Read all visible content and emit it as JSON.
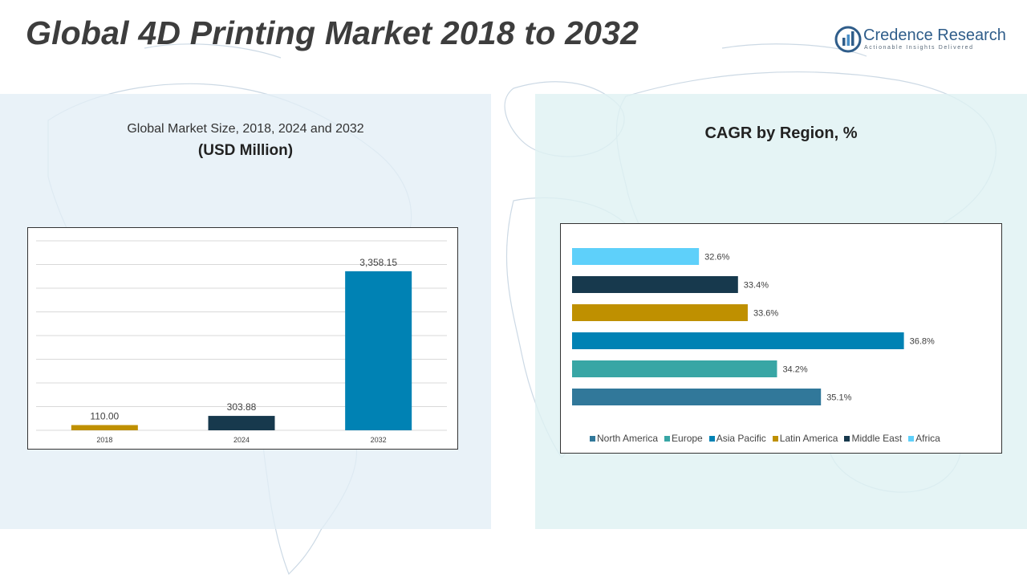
{
  "header": {
    "title": "Global 4D Printing Market 2018 to 2032",
    "logo_name": "Credence Research",
    "logo_tagline": "Actionable Insights Delivered"
  },
  "left_panel": {
    "subtitle": "Global Market Size, 2018, 2024 and 2032",
    "unit": "(USD Million)"
  },
  "right_panel": {
    "title": "CAGR by Region, %"
  },
  "colors": {
    "panel_left": "#e3eef6",
    "panel_right": "#def1f3",
    "gridline": "#d9d9d9"
  },
  "chart_data": [
    {
      "type": "bar",
      "orientation": "vertical",
      "categories": [
        "2018",
        "2024",
        "2032"
      ],
      "values": [
        110.0,
        303.88,
        3358.15
      ],
      "value_labels": [
        "110.00",
        "303.88",
        "3,358.15"
      ],
      "colors": [
        "#bf9000",
        "#17394d",
        "#0082b4"
      ],
      "ylim": [
        0,
        4000
      ],
      "grid": true
    },
    {
      "type": "bar",
      "orientation": "horizontal",
      "categories": [
        "North America",
        "Europe",
        "Asia Pacific",
        "Latin America",
        "Middle East",
        "Africa"
      ],
      "values": [
        35.1,
        34.2,
        36.8,
        33.6,
        33.4,
        32.6
      ],
      "value_labels": [
        "35.1%",
        "34.2%",
        "36.8%",
        "33.6%",
        "33.4%",
        "32.6%"
      ],
      "colors": [
        "#31789a",
        "#38a6a5",
        "#0082b4",
        "#bf9000",
        "#17394d",
        "#5ed0fa"
      ],
      "xlim": [
        30,
        37.3
      ],
      "legend_position": "bottom",
      "grid": false
    }
  ]
}
